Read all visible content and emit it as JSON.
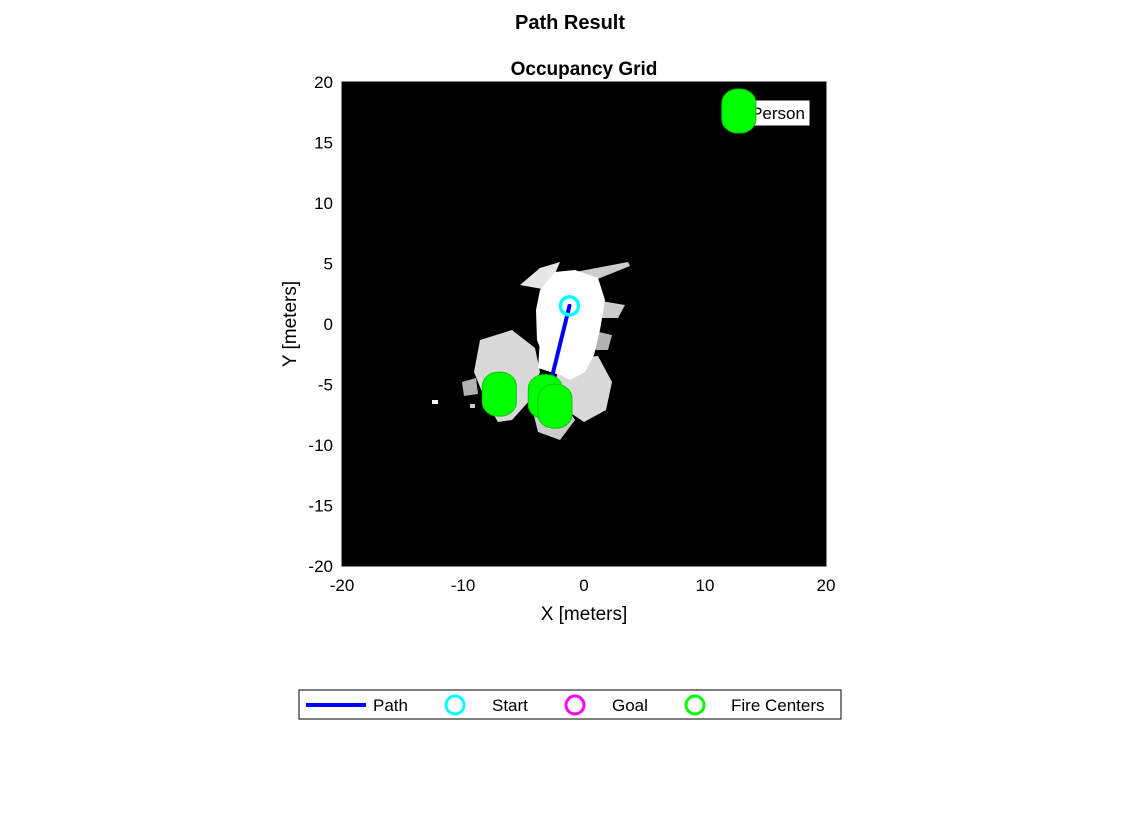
{
  "figure_title": "Path Result",
  "chart_data": {
    "type": "scatter",
    "title": "Occupancy Grid",
    "xlabel": "X [meters]",
    "ylabel": "Y [meters]",
    "xlim": [
      -20,
      20
    ],
    "ylim": [
      -20,
      20
    ],
    "xticks": [
      -20,
      -10,
      0,
      10,
      20
    ],
    "yticks": [
      -20,
      -15,
      -10,
      -5,
      0,
      5,
      10,
      15,
      20
    ],
    "grid": false,
    "background": "#000000",
    "free_space_color": "#ffffff",
    "series": [
      {
        "name": "Path",
        "kind": "line",
        "color": "#0000ff",
        "x": [
          -1.2,
          -2.8
        ],
        "y": [
          1.5,
          -5.0
        ]
      },
      {
        "name": "Start",
        "kind": "marker",
        "color": "#00ffff",
        "x": [
          -1.2
        ],
        "y": [
          1.5
        ]
      },
      {
        "name": "Goal",
        "kind": "marker",
        "color": "#ff00ff",
        "x": [
          -2.8
        ],
        "y": [
          -5.0
        ]
      },
      {
        "name": "Fire Centers",
        "kind": "marker",
        "color": "#00ff00",
        "x": [
          -7.0,
          -3.2,
          -2.4,
          12.8
        ],
        "y": [
          -5.8,
          -6.0,
          -6.8,
          17.6
        ]
      }
    ],
    "annotation": {
      "text": "Person",
      "x": 15.0,
      "y": 17.6
    },
    "legend_position": "bottom-outside"
  }
}
